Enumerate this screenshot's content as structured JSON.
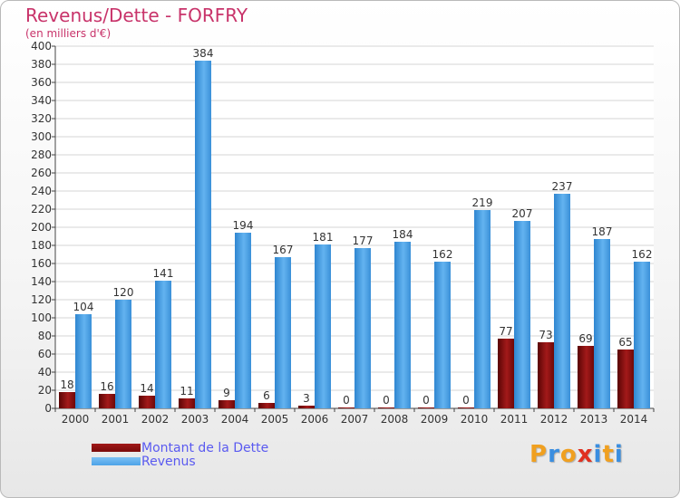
{
  "title": "Revenus/Dette - FORFRY",
  "subtitle": "(en milliers d'€)",
  "legend": [
    {
      "label": "Montant de la Dette",
      "color": "#7a0a0a"
    },
    {
      "label": "Revenus",
      "color": "#4da3e8"
    }
  ],
  "logo": {
    "text": "Proxiti",
    "letters": [
      {
        "ch": "P",
        "color": "#f0a020"
      },
      {
        "ch": "r",
        "color": "#3a8ee0"
      },
      {
        "ch": "o",
        "color": "#f0a020"
      },
      {
        "ch": "x",
        "color": "#e03020"
      },
      {
        "ch": "i",
        "color": "#3a8ee0"
      },
      {
        "ch": "t",
        "color": "#f0a020"
      },
      {
        "ch": "i",
        "color": "#3a8ee0"
      }
    ]
  },
  "chart_data": {
    "type": "bar",
    "categories": [
      "2000",
      "2001",
      "2002",
      "2003",
      "2004",
      "2005",
      "2006",
      "2007",
      "2008",
      "2009",
      "2010",
      "2011",
      "2012",
      "2013",
      "2014"
    ],
    "series": [
      {
        "name": "Montant de la Dette",
        "color": "#7a0a0a",
        "values": [
          18,
          16,
          14,
          11,
          9,
          6,
          3,
          0,
          0,
          0,
          0,
          77,
          73,
          69,
          65
        ]
      },
      {
        "name": "Revenus",
        "color": "#4da3e8",
        "values": [
          104,
          120,
          141,
          384,
          194,
          167,
          181,
          177,
          184,
          162,
          219,
          207,
          237,
          187,
          162
        ]
      }
    ],
    "ylim": [
      0,
      400
    ],
    "ytick_step": 20,
    "grid": true,
    "legend_position": "bottom-left"
  }
}
